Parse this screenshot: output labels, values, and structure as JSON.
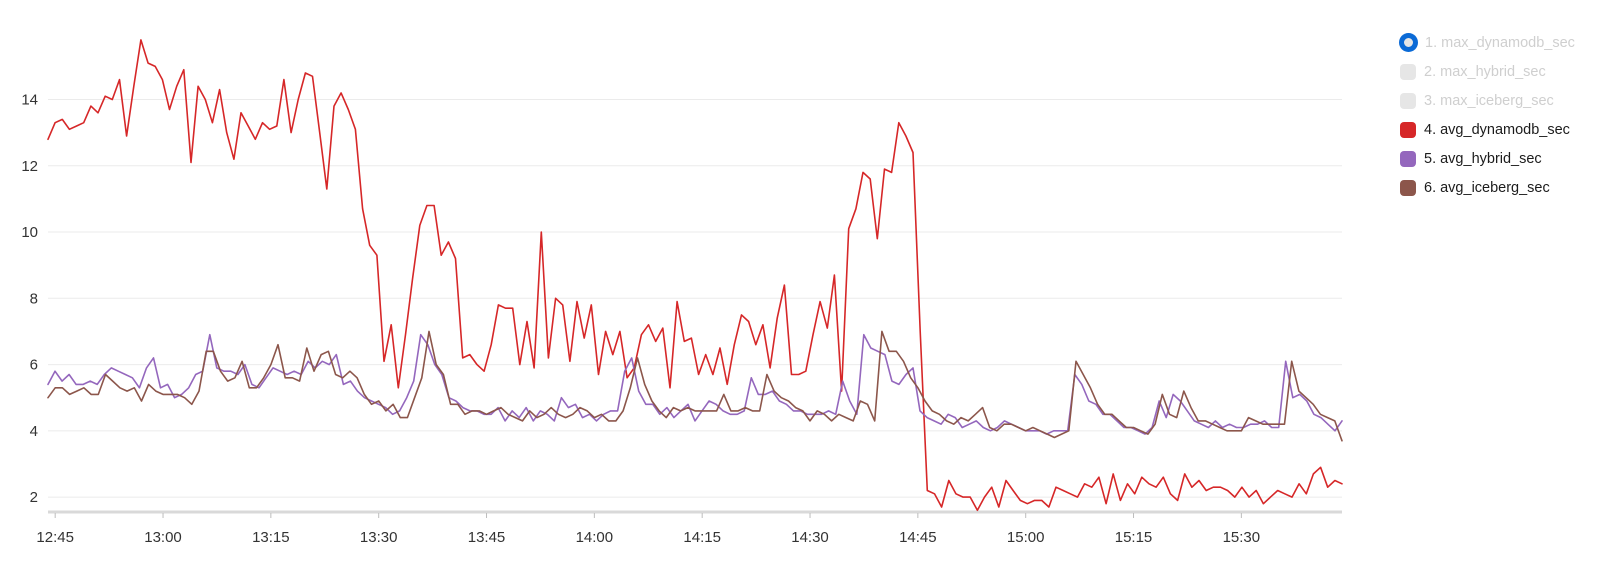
{
  "chart_data": {
    "type": "line",
    "title": "",
    "xlabel": "",
    "ylabel": "",
    "x_tick_labels": [
      "12:45",
      "13:00",
      "13:15",
      "13:30",
      "13:45",
      "14:00",
      "14:15",
      "14:30",
      "14:45",
      "15:00",
      "15:15",
      "15:30"
    ],
    "x_tick_minutes": [
      765,
      780,
      795,
      810,
      825,
      840,
      855,
      870,
      885,
      900,
      915,
      930
    ],
    "x_range_minutes": [
      764,
      944
    ],
    "y_ticks": [
      2,
      4,
      6,
      8,
      10,
      12,
      14
    ],
    "ylim": [
      1.55,
      16.4
    ],
    "grid": "horizontal",
    "legend_position": "right",
    "series": [
      {
        "name": "1. max_dynamodb_sec",
        "color": "#0b6ad6",
        "visible": false,
        "selected": true,
        "values": []
      },
      {
        "name": "2. max_hybrid_sec",
        "color": "#e6e6e6",
        "visible": false,
        "values": []
      },
      {
        "name": "3. max_iceberg_sec",
        "color": "#e6e6e6",
        "visible": false,
        "values": []
      },
      {
        "name": "4. avg_dynamodb_sec",
        "color": "#d62728",
        "visible": true,
        "values": [
          12.8,
          13.3,
          13.4,
          13.1,
          13.2,
          13.3,
          13.8,
          13.6,
          14.1,
          14.0,
          14.6,
          12.9,
          14.4,
          15.8,
          15.1,
          15.0,
          14.6,
          13.7,
          14.4,
          14.9,
          12.1,
          14.4,
          14.0,
          13.3,
          14.3,
          13.0,
          12.2,
          13.6,
          13.2,
          12.8,
          13.3,
          13.1,
          13.2,
          14.6,
          13.0,
          14.0,
          14.8,
          14.7,
          13.0,
          11.3,
          13.8,
          14.2,
          13.7,
          13.1,
          10.7,
          9.6,
          9.3,
          6.1,
          7.2,
          5.3,
          6.9,
          8.6,
          10.2,
          10.8,
          10.8,
          9.3,
          9.7,
          9.2,
          6.2,
          6.3,
          6.0,
          5.8,
          6.6,
          7.8,
          7.7,
          7.7,
          6.0,
          7.3,
          5.9,
          10.0,
          6.2,
          8.0,
          7.8,
          6.1,
          7.9,
          6.8,
          7.8,
          5.7,
          7.0,
          6.3,
          7.0,
          5.6,
          5.9,
          6.9,
          7.2,
          6.7,
          7.1,
          5.3,
          7.9,
          6.7,
          6.8,
          5.7,
          6.3,
          5.7,
          6.5,
          5.4,
          6.6,
          7.5,
          7.3,
          6.6,
          7.2,
          5.9,
          7.4,
          8.4,
          5.7,
          5.7,
          5.8,
          6.9,
          7.9,
          7.1,
          8.7,
          5.2,
          10.1,
          10.7,
          11.8,
          11.6,
          9.8,
          11.9,
          11.8,
          13.3,
          12.9,
          12.4,
          7.0,
          2.2,
          2.1,
          1.7,
          2.5,
          2.1,
          2.0,
          2.0,
          1.6,
          2.0,
          2.3,
          1.7,
          2.5,
          2.2,
          1.9,
          1.8,
          1.9,
          1.9,
          1.7,
          2.3,
          2.2,
          2.1,
          2.0,
          2.4,
          2.3,
          2.6,
          1.8,
          2.7,
          1.9,
          2.4,
          2.1,
          2.6,
          2.4,
          2.3,
          2.6,
          2.1,
          1.9,
          2.7,
          2.3,
          2.5,
          2.2,
          2.3,
          2.3,
          2.2,
          2.0,
          2.3,
          2.0,
          2.2,
          1.8,
          2.0,
          2.2,
          2.1,
          2.0,
          2.4,
          2.1,
          2.7,
          2.9,
          2.3,
          2.5,
          2.4
        ]
      },
      {
        "name": "5. avg_hybrid_sec",
        "color": "#9467bd",
        "visible": true,
        "values": [
          5.4,
          5.8,
          5.5,
          5.7,
          5.4,
          5.4,
          5.5,
          5.4,
          5.7,
          5.9,
          5.8,
          5.7,
          5.6,
          5.3,
          5.9,
          6.2,
          5.3,
          5.4,
          5.0,
          5.1,
          5.3,
          5.7,
          5.8,
          6.9,
          5.9,
          5.8,
          5.8,
          5.7,
          6.0,
          5.4,
          5.3,
          5.6,
          5.9,
          5.8,
          5.7,
          5.8,
          5.7,
          6.1,
          5.9,
          6.1,
          6.0,
          6.3,
          5.4,
          5.5,
          5.2,
          5.0,
          4.9,
          4.8,
          4.7,
          4.5,
          4.6,
          5.0,
          5.5,
          6.9,
          6.6,
          6.0,
          5.7,
          5.0,
          4.9,
          4.7,
          4.6,
          4.6,
          4.5,
          4.5,
          4.7,
          4.3,
          4.6,
          4.4,
          4.7,
          4.3,
          4.6,
          4.5,
          4.3,
          5.0,
          4.7,
          4.8,
          4.4,
          4.5,
          4.3,
          4.5,
          4.6,
          4.6,
          5.8,
          6.2,
          5.2,
          4.8,
          4.8,
          4.5,
          4.7,
          4.4,
          4.6,
          4.8,
          4.3,
          4.6,
          4.9,
          4.8,
          4.6,
          4.5,
          4.5,
          4.6,
          5.6,
          5.1,
          5.1,
          5.2,
          4.9,
          4.8,
          4.6,
          4.6,
          4.5,
          4.5,
          4.5,
          4.6,
          4.5,
          5.5,
          4.9,
          4.5,
          6.9,
          6.5,
          6.4,
          6.3,
          5.5,
          5.4,
          5.7,
          5.9,
          4.6,
          4.4,
          4.3,
          4.2,
          4.5,
          4.4,
          4.1,
          4.2,
          4.3,
          4.1,
          4.0,
          4.1,
          4.3,
          4.2,
          4.1,
          4.0,
          4.0,
          4.0,
          3.9,
          4.0,
          4.0,
          4.0,
          5.7,
          5.4,
          4.9,
          4.8,
          4.5,
          4.5,
          4.3,
          4.1,
          4.1,
          4.0,
          3.9,
          4.1,
          4.9,
          4.4,
          5.1,
          4.9,
          4.6,
          4.3,
          4.2,
          4.1,
          4.3,
          4.1,
          4.2,
          4.1,
          4.1,
          4.2,
          4.2,
          4.3,
          4.1,
          4.1,
          6.1,
          5.0,
          5.1,
          4.9,
          4.5,
          4.4,
          4.2,
          4.0,
          4.3
        ]
      },
      {
        "name": "6. avg_iceberg_sec",
        "color": "#8c564b",
        "visible": true,
        "values": [
          5.0,
          5.3,
          5.3,
          5.1,
          5.2,
          5.3,
          5.1,
          5.1,
          5.7,
          5.5,
          5.3,
          5.2,
          5.3,
          4.9,
          5.4,
          5.2,
          5.1,
          5.1,
          5.1,
          5.0,
          4.8,
          5.2,
          6.4,
          6.4,
          5.8,
          5.5,
          5.6,
          6.1,
          5.3,
          5.3,
          5.6,
          6.0,
          6.6,
          5.6,
          5.6,
          5.5,
          6.5,
          5.8,
          6.3,
          6.4,
          5.7,
          5.6,
          5.8,
          5.6,
          5.1,
          4.8,
          4.9,
          4.6,
          4.8,
          4.4,
          4.4,
          5.0,
          5.6,
          7.0,
          6.0,
          5.7,
          4.8,
          4.8,
          4.5,
          4.6,
          4.6,
          4.5,
          4.6,
          4.7,
          4.5,
          4.4,
          4.3,
          4.6,
          4.4,
          4.5,
          4.7,
          4.5,
          4.4,
          4.5,
          4.7,
          4.6,
          4.4,
          4.5,
          4.3,
          4.3,
          4.6,
          5.3,
          6.2,
          5.4,
          4.9,
          4.6,
          4.4,
          4.7,
          4.6,
          4.7,
          4.6,
          4.6,
          4.6,
          4.6,
          5.1,
          4.6,
          4.6,
          4.7,
          4.6,
          4.6,
          5.7,
          5.2,
          5.0,
          4.9,
          4.7,
          4.6,
          4.3,
          4.6,
          4.5,
          4.3,
          4.5,
          4.4,
          4.3,
          4.9,
          4.8,
          4.3,
          7.0,
          6.4,
          6.4,
          6.1,
          5.6,
          5.3,
          4.9,
          4.6,
          4.5,
          4.3,
          4.2,
          4.4,
          4.3,
          4.5,
          4.7,
          4.1,
          4.0,
          4.2,
          4.2,
          4.1,
          4.0,
          4.1,
          4.0,
          3.9,
          3.8,
          3.9,
          4.0,
          6.1,
          5.7,
          5.3,
          4.8,
          4.5,
          4.5,
          4.3,
          4.1,
          4.1,
          4.0,
          3.9,
          4.2,
          5.1,
          4.5,
          4.4,
          5.2,
          4.7,
          4.3,
          4.3,
          4.2,
          4.1,
          4.0,
          4.0,
          4.0,
          4.4,
          4.3,
          4.2,
          4.2,
          4.2,
          4.2,
          6.1,
          5.2,
          5.0,
          4.8,
          4.5,
          4.4,
          4.3,
          3.7
        ]
      }
    ]
  }
}
